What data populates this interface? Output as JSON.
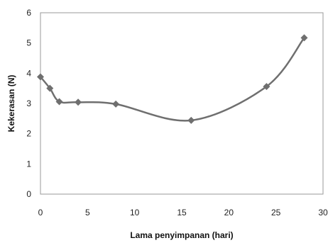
{
  "chart_data": {
    "type": "line",
    "title": "",
    "xlabel": "Lama penyimpanan (hari)",
    "ylabel": "Kekerasan (N)",
    "xlim": [
      0,
      30
    ],
    "ylim": [
      0,
      6
    ],
    "xticks": [
      0,
      5,
      10,
      15,
      20,
      25,
      30
    ],
    "yticks": [
      0,
      1,
      2,
      3,
      4,
      5,
      6
    ],
    "grid": false,
    "smooth": true,
    "series": [
      {
        "color": "#6f6f6f",
        "marker": "diamond",
        "x": [
          0,
          1,
          2,
          4,
          8,
          16,
          24,
          28
        ],
        "y": [
          3.88,
          3.5,
          3.06,
          3.04,
          2.98,
          2.44,
          3.56,
          5.17
        ]
      }
    ]
  }
}
